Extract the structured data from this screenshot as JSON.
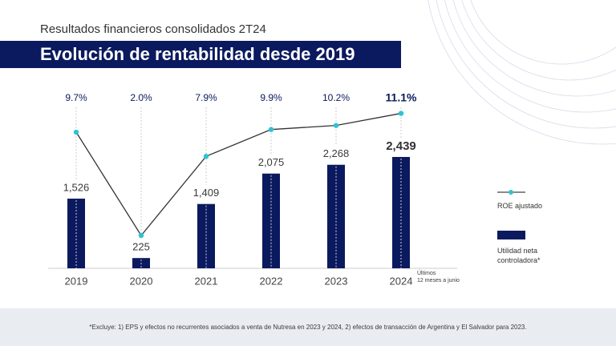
{
  "chart_data": {
    "type": "bar",
    "subtitle": "Resultados financieros consolidados 2T24",
    "title": "Evolución de rentabilidad desde 2019",
    "categories": [
      "2019",
      "2020",
      "2021",
      "2022",
      "2023",
      "2024"
    ],
    "series": [
      {
        "name": "Utilidad neta controladora*",
        "type": "bar",
        "color": "#0b1a5e",
        "values": [
          1526,
          225,
          1409,
          2075,
          2268,
          2439
        ],
        "value_labels": [
          "1,526",
          "225",
          "1,409",
          "2,075",
          "2,268",
          "2,439"
        ]
      },
      {
        "name": "ROE ajustado",
        "type": "line",
        "axis": "y2",
        "color": "#2cc3d5",
        "values": [
          9.7,
          2.0,
          7.9,
          9.9,
          10.2,
          11.1
        ],
        "value_labels": [
          "9.7%",
          "2.0%",
          "7.9%",
          "9.9%",
          "10.2%",
          "11.1%"
        ]
      }
    ],
    "annotation": [
      "Últimos",
      "12 meses a junio"
    ],
    "legend": "right",
    "footnote": "*Excluye: 1) EPS y efectos no recurrentes asociados a venta de Nutresa en 2023 y 2024, 2) efectos de transacción de Argentina y El Salvador para 2023."
  }
}
